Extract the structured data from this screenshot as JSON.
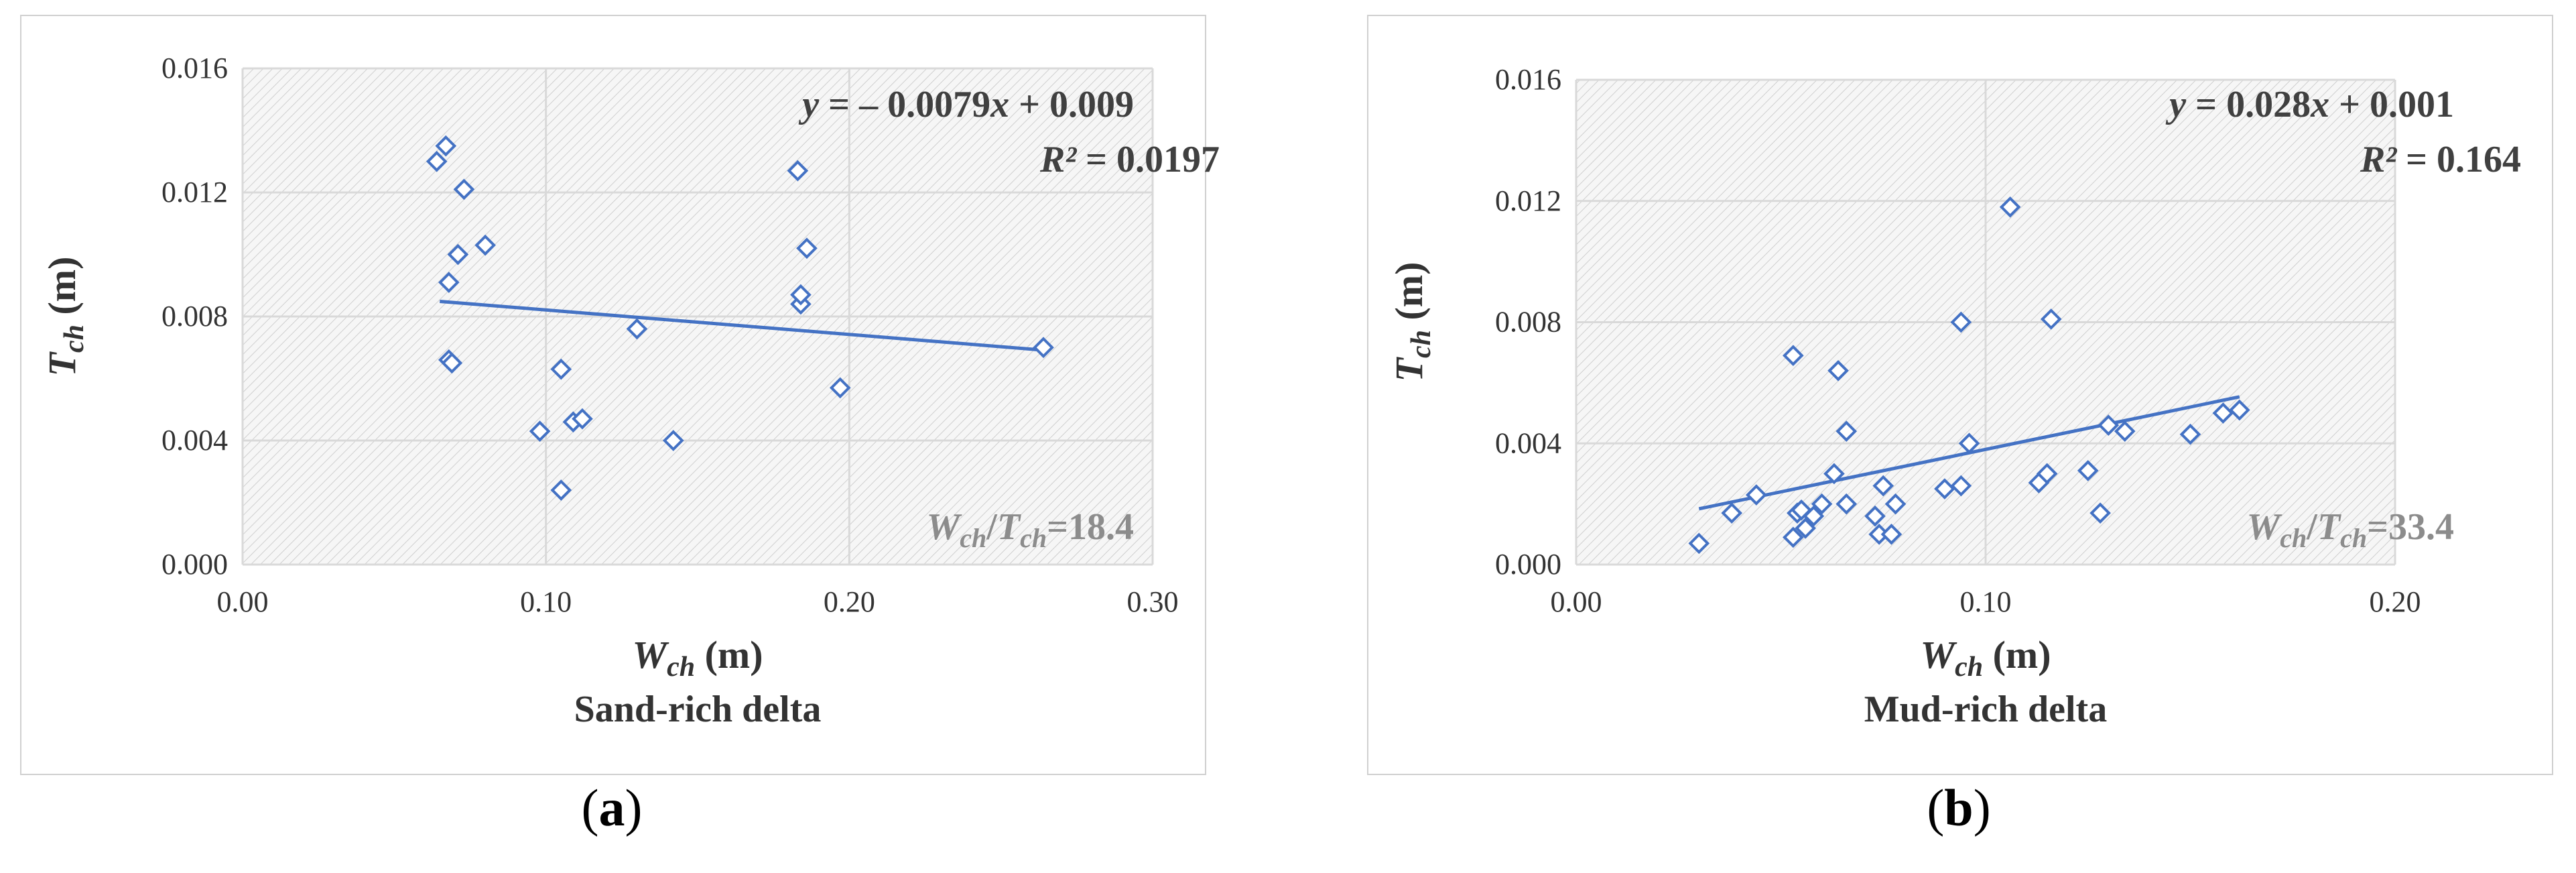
{
  "charts": [
    {
      "type": "scatter",
      "title": "",
      "xlabel": "Sand-rich delta",
      "xaxis_symbol": {
        "main": "W",
        "sub": "ch",
        "unit": " (m)"
      },
      "yaxis_symbol": {
        "main": "T",
        "sub": "ch",
        "unit": " (m)"
      },
      "xlim": [
        0.0,
        0.3
      ],
      "ylim": [
        0.0,
        0.016
      ],
      "xticks": [
        "0.00",
        "0.10",
        "0.20",
        "0.30"
      ],
      "yticks": [
        "0.000",
        "0.004",
        "0.008",
        "0.012",
        "0.016"
      ],
      "grid": true,
      "marker": "diamond-open",
      "color": "#4472c4",
      "equation": {
        "lhs": "y",
        "rhs": " = – 0.0079x + 0.009"
      },
      "r2": {
        "label": "R²",
        "value": " = 0.0197"
      },
      "ratio": {
        "text": "=18.4"
      },
      "trendline": {
        "slope": -0.0079,
        "intercept": 0.009,
        "x_range": [
          0.065,
          0.264
        ]
      },
      "points": [
        [
          0.064,
          0.013
        ],
        [
          0.067,
          0.0135
        ],
        [
          0.073,
          0.0121
        ],
        [
          0.071,
          0.01
        ],
        [
          0.08,
          0.0103
        ],
        [
          0.068,
          0.0091
        ],
        [
          0.068,
          0.0066
        ],
        [
          0.069,
          0.0065
        ],
        [
          0.098,
          0.0043
        ],
        [
          0.105,
          0.0063
        ],
        [
          0.105,
          0.0024
        ],
        [
          0.109,
          0.0046
        ],
        [
          0.112,
          0.0047
        ],
        [
          0.13,
          0.0076
        ],
        [
          0.142,
          0.004
        ],
        [
          0.183,
          0.0127
        ],
        [
          0.184,
          0.0084
        ],
        [
          0.184,
          0.0087
        ],
        [
          0.186,
          0.0102
        ],
        [
          0.197,
          0.0057
        ],
        [
          0.264,
          0.007
        ]
      ]
    },
    {
      "type": "scatter",
      "title": "",
      "xlabel": "Mud-rich delta",
      "xaxis_symbol": {
        "main": "W",
        "sub": "ch",
        "unit": " (m)"
      },
      "yaxis_symbol": {
        "main": "T",
        "sub": "ch",
        "unit": " (m)"
      },
      "xlim": [
        0.0,
        0.2
      ],
      "ylim": [
        0.0,
        0.016
      ],
      "xticks": [
        "0.00",
        "0.10",
        "0.20"
      ],
      "yticks": [
        "0.000",
        "0.004",
        "0.008",
        "0.012",
        "0.016"
      ],
      "grid": true,
      "marker": "diamond-open",
      "color": "#4472c4",
      "equation": {
        "lhs": "y",
        "rhs": " = 0.028x + 0.001"
      },
      "r2": {
        "label": "R²",
        "value": " = 0.164"
      },
      "ratio": {
        "text": "=33.4"
      },
      "trendline": {
        "slope": 0.028,
        "intercept": 0.001,
        "x_range": [
          0.03,
          0.162
        ]
      },
      "points": [
        [
          0.03,
          0.0007
        ],
        [
          0.038,
          0.0017
        ],
        [
          0.044,
          0.0023
        ],
        [
          0.053,
          0.0069
        ],
        [
          0.053,
          0.0009
        ],
        [
          0.054,
          0.0017
        ],
        [
          0.055,
          0.0018
        ],
        [
          0.056,
          0.0012
        ],
        [
          0.058,
          0.0016
        ],
        [
          0.06,
          0.002
        ],
        [
          0.063,
          0.003
        ],
        [
          0.064,
          0.0064
        ],
        [
          0.066,
          0.0044
        ],
        [
          0.066,
          0.002
        ],
        [
          0.073,
          0.0016
        ],
        [
          0.074,
          0.001
        ],
        [
          0.075,
          0.0026
        ],
        [
          0.077,
          0.001
        ],
        [
          0.078,
          0.002
        ],
        [
          0.09,
          0.0025
        ],
        [
          0.094,
          0.008
        ],
        [
          0.094,
          0.0026
        ],
        [
          0.096,
          0.004
        ],
        [
          0.106,
          0.0118
        ],
        [
          0.113,
          0.0027
        ],
        [
          0.115,
          0.003
        ],
        [
          0.116,
          0.0081
        ],
        [
          0.125,
          0.0031
        ],
        [
          0.128,
          0.0017
        ],
        [
          0.13,
          0.0046
        ],
        [
          0.134,
          0.0044
        ],
        [
          0.15,
          0.0043
        ],
        [
          0.158,
          0.005
        ],
        [
          0.162,
          0.0051
        ]
      ]
    }
  ],
  "captions": [
    {
      "open": "(",
      "letter": "a",
      "close": ")"
    },
    {
      "open": "(",
      "letter": "b",
      "close": ")"
    }
  ]
}
